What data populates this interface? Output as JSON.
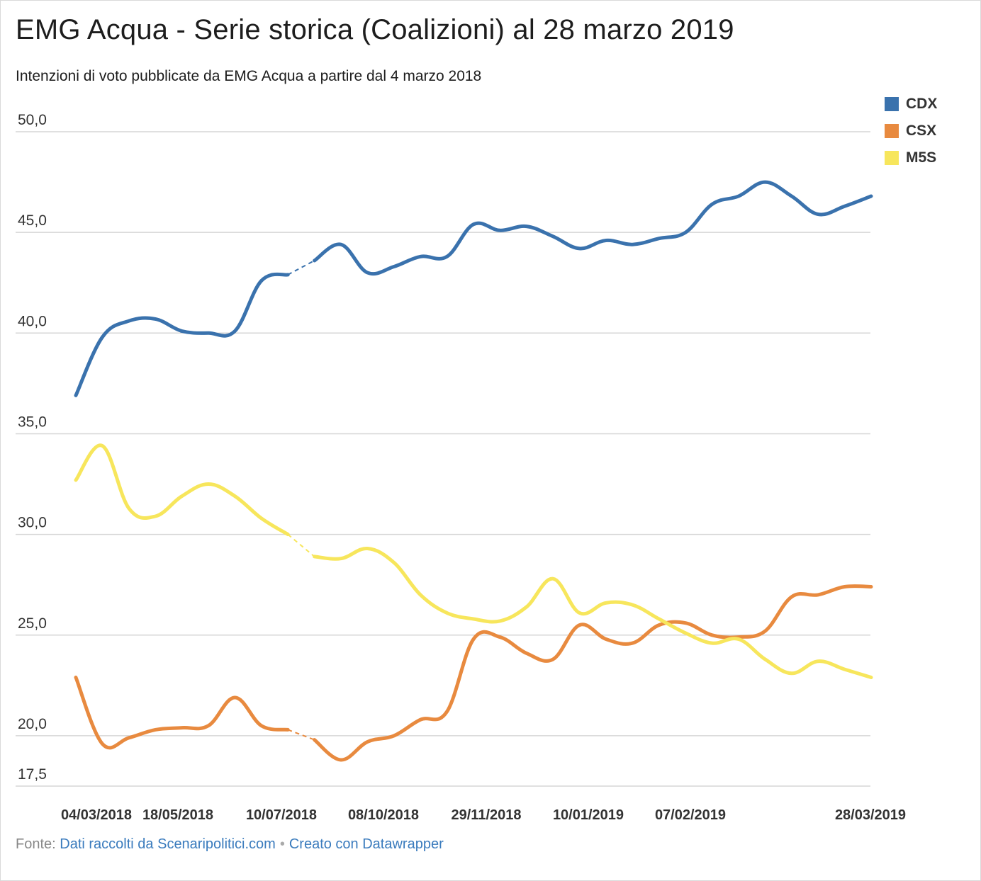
{
  "title": "EMG Acqua - Serie storica (Coalizioni) al 28 marzo 2019",
  "subtitle": "Intenzioni di voto pubblicate da EMG Acqua a partire dal 4 marzo 2018",
  "footer": {
    "source_prefix": "Fonte:",
    "source_link": "Dati raccolti da Scenaripolitici.com",
    "separator": "•",
    "credit": "Creato con Datawrapper"
  },
  "chart_data": {
    "type": "line",
    "title": "EMG Acqua - Serie storica (Coalizioni) al 28 marzo 2019",
    "xlabel": "",
    "ylabel": "",
    "ylim": [
      17.5,
      50
    ],
    "y_ticks": [
      {
        "value": 50,
        "label": "50,0"
      },
      {
        "value": 45,
        "label": "45,0"
      },
      {
        "value": 40,
        "label": "40,0"
      },
      {
        "value": 35,
        "label": "35,0"
      },
      {
        "value": 30,
        "label": "30,0"
      },
      {
        "value": 25,
        "label": "25,0"
      },
      {
        "value": 20,
        "label": "20,0"
      },
      {
        "value": 17.5,
        "label": "17,5"
      }
    ],
    "x_ticks": [
      "04/03/2018",
      "18/05/2018",
      "10/07/2018",
      "08/10/2018",
      "29/11/2018",
      "10/01/2019",
      "07/02/2019",
      "28/03/2019"
    ],
    "grid": true,
    "legend_position": "top-right",
    "gap_after_index": 10,
    "series": [
      {
        "name": "CDX",
        "color": "#3a72ad",
        "values": [
          36.9,
          39.8,
          40.6,
          40.7,
          40.1,
          40.0,
          40.1,
          42.6,
          42.9,
          43.6,
          44.4,
          43.0,
          43.3,
          43.8,
          43.8,
          45.4,
          45.1,
          45.3,
          44.8,
          44.2,
          44.6,
          44.4,
          44.7,
          45.0,
          46.4,
          46.8,
          47.5,
          46.8,
          45.9,
          46.3,
          46.8
        ]
      },
      {
        "name": "CSX",
        "color": "#e88a3f",
        "values": [
          22.9,
          19.6,
          19.9,
          20.3,
          20.4,
          20.5,
          21.9,
          20.5,
          20.3,
          19.8,
          18.8,
          19.7,
          20.0,
          20.8,
          21.2,
          24.8,
          24.9,
          24.1,
          23.8,
          25.5,
          24.8,
          24.6,
          25.5,
          25.6,
          25.0,
          24.9,
          25.2,
          26.9,
          27.0,
          27.4,
          27.4
        ]
      },
      {
        "name": "M5S",
        "color": "#f7e65c",
        "values": [
          32.7,
          34.4,
          31.3,
          30.9,
          31.9,
          32.5,
          31.9,
          30.8,
          30.0,
          28.9,
          28.8,
          29.3,
          28.6,
          27.0,
          26.1,
          25.8,
          25.7,
          26.4,
          27.8,
          26.1,
          26.6,
          26.5,
          25.8,
          25.1,
          24.6,
          24.8,
          23.8,
          23.1,
          23.7,
          23.3,
          22.9
        ]
      }
    ]
  }
}
